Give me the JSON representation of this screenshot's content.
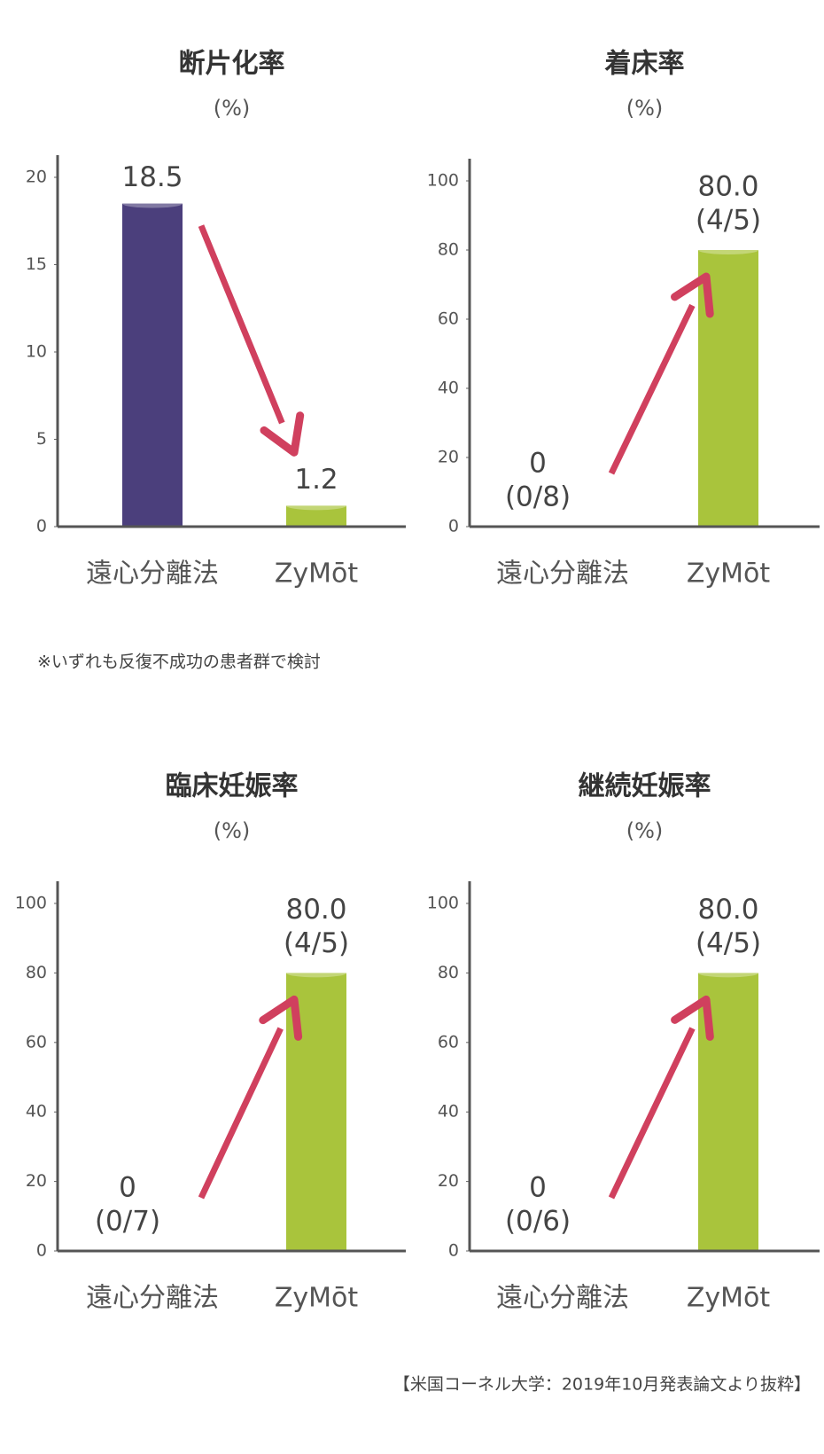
{
  "chart_data": [
    {
      "type": "bar",
      "title": "断片化率",
      "subtitle": "(%)",
      "categories": [
        "遠心分離法",
        "ZyMōt"
      ],
      "values": [
        18.5,
        1.2
      ],
      "value_labels": [
        "18.5",
        "1.2"
      ],
      "colors": [
        "#4b3f7c",
        "#a9c43c"
      ],
      "ylim": [
        0,
        20
      ],
      "yticks": [
        0,
        5,
        10,
        15,
        20
      ]
    },
    {
      "type": "bar",
      "title": "着床率",
      "subtitle": "(%)",
      "categories": [
        "遠心分離法",
        "ZyMōt"
      ],
      "values": [
        0,
        80
      ],
      "value_labels": [
        "0",
        "80.0"
      ],
      "counts": [
        "(0/8)",
        "(4/5)"
      ],
      "colors": [
        "#4b3f7c",
        "#a9c43c"
      ],
      "ylim": [
        0,
        100
      ],
      "yticks": [
        0,
        20,
        40,
        60,
        80,
        100
      ]
    },
    {
      "type": "bar",
      "title": "臨床妊娠率",
      "subtitle": "(%)",
      "categories": [
        "遠心分離法",
        "ZyMōt"
      ],
      "values": [
        0,
        80
      ],
      "value_labels": [
        "0",
        "80.0"
      ],
      "counts": [
        "(0/7)",
        "(4/5)"
      ],
      "colors": [
        "#4b3f7c",
        "#a9c43c"
      ],
      "ylim": [
        0,
        100
      ],
      "yticks": [
        0,
        20,
        40,
        60,
        80,
        100
      ]
    },
    {
      "type": "bar",
      "title": "継続妊娠率",
      "subtitle": "(%)",
      "categories": [
        "遠心分離法",
        "ZyMōt"
      ],
      "values": [
        0,
        80
      ],
      "value_labels": [
        "0",
        "80.0"
      ],
      "counts": [
        "(0/6)",
        "(4/5)"
      ],
      "colors": [
        "#4b3f7c",
        "#a9c43c"
      ],
      "ylim": [
        0,
        100
      ],
      "yticks": [
        0,
        20,
        40,
        60,
        80,
        100
      ]
    }
  ],
  "note": "※いずれも反復不成功の患者群で検討",
  "source": "【米国コーネル大学：2019年10月発表論文より抜粋】"
}
